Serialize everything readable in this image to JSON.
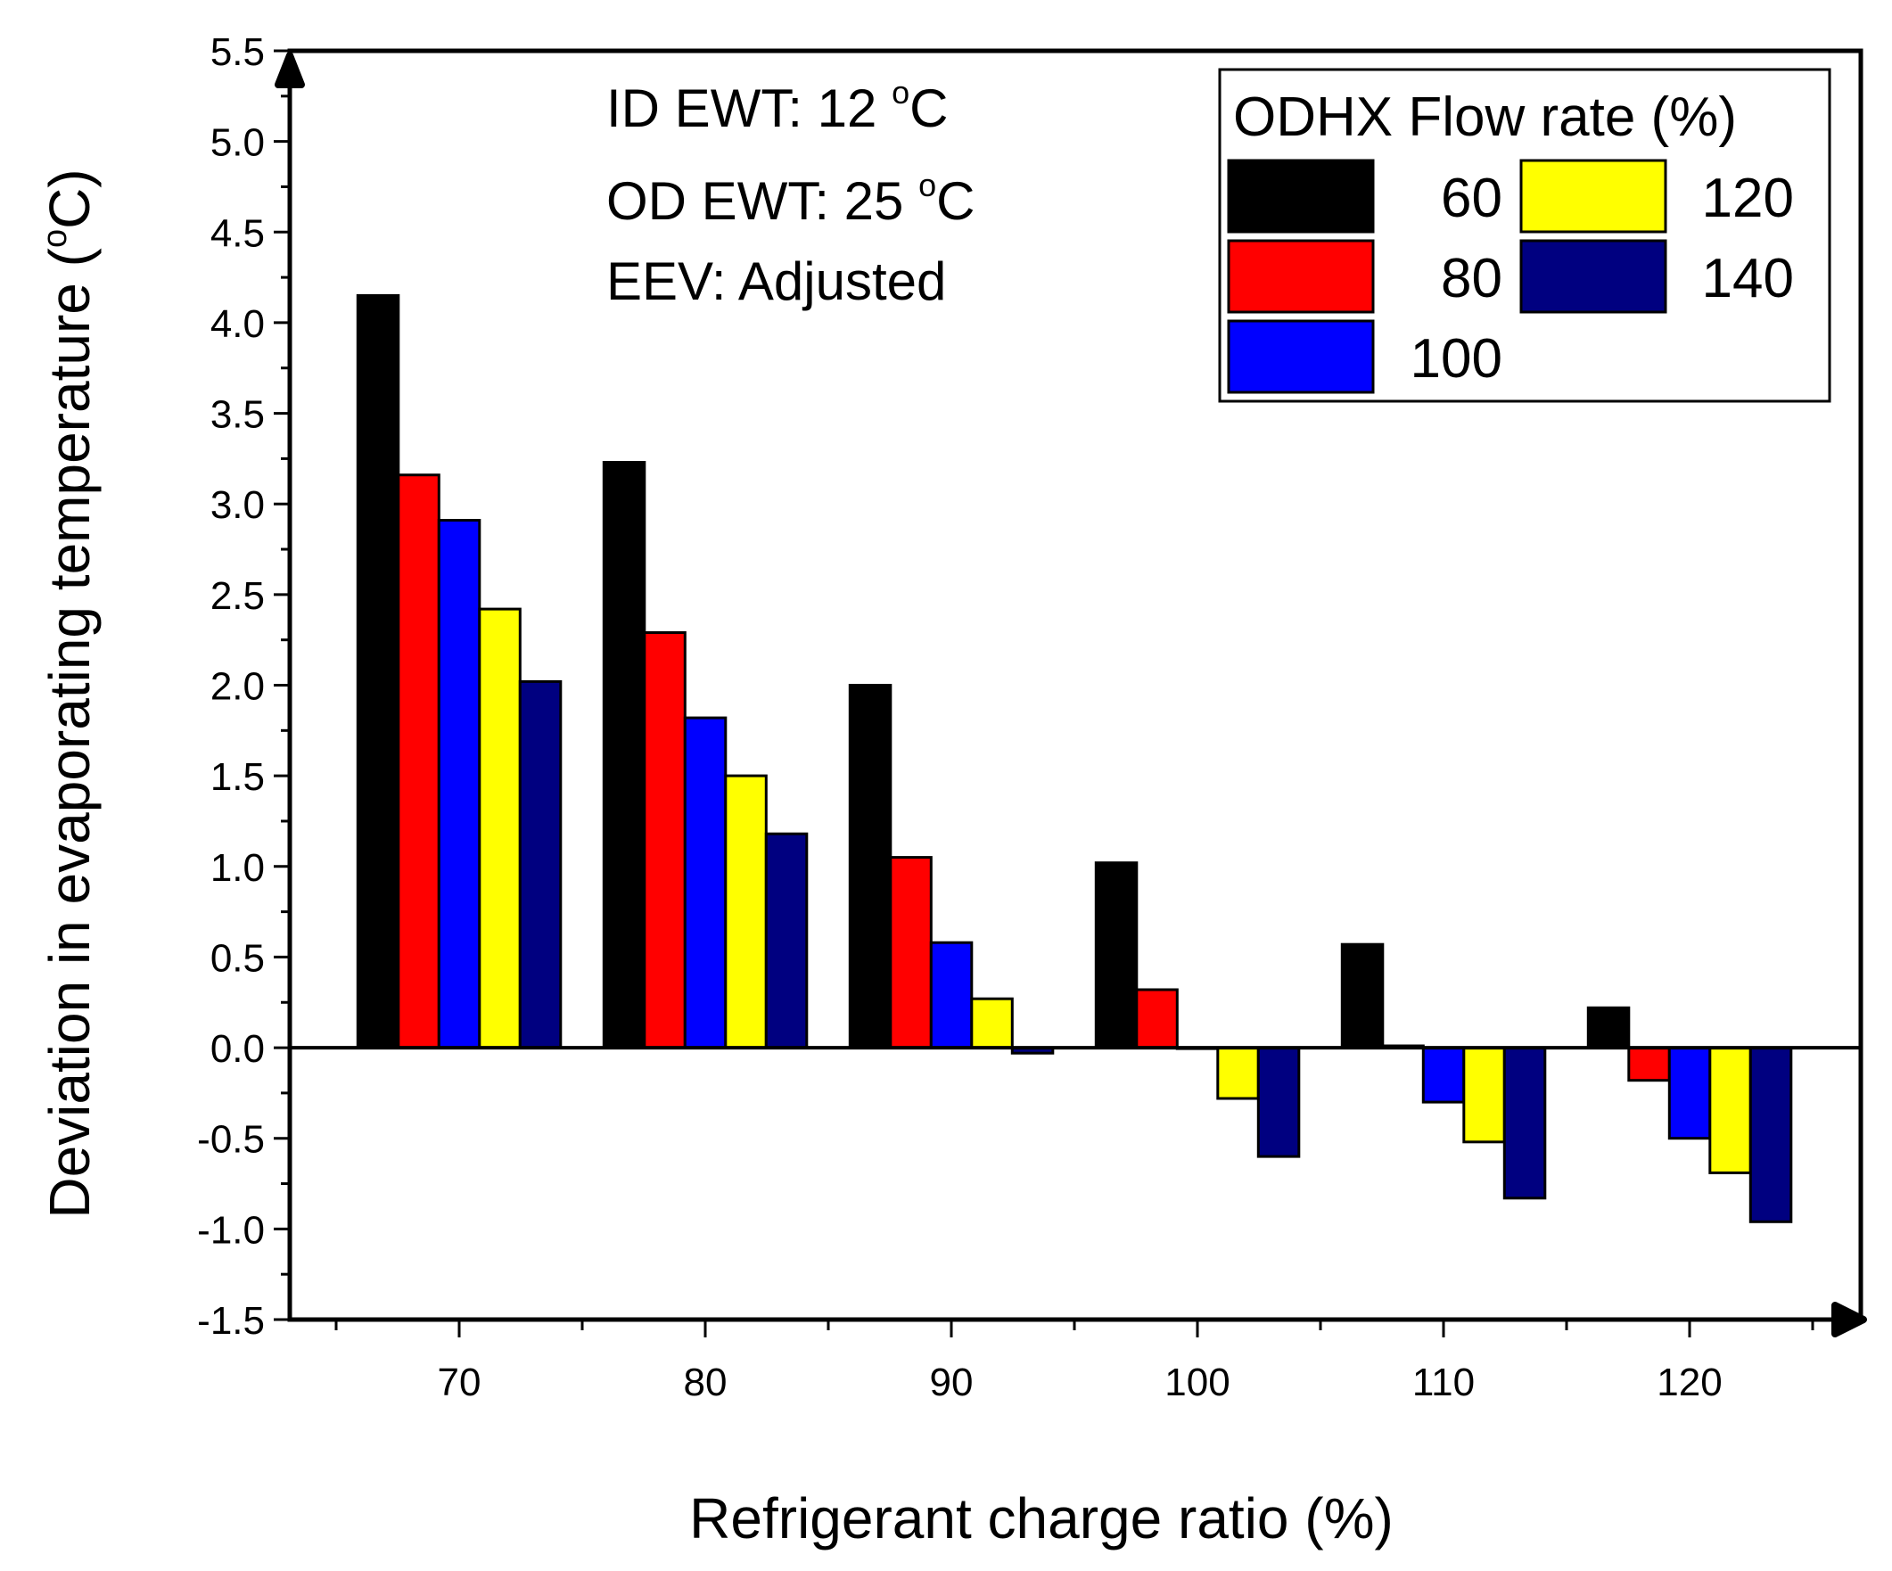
{
  "chart_data": {
    "type": "bar",
    "title": "",
    "xlabel": "Refrigerant charge ratio (%)",
    "ylabel_main": "Deviation in evaporating temperature (",
    "ylabel_sup": "o",
    "ylabel_end": "C)",
    "categories": [
      "70",
      "80",
      "90",
      "100",
      "110",
      "120"
    ],
    "x_ticks": [
      "70",
      "80",
      "90",
      "100",
      "110",
      "120"
    ],
    "ylim": [
      -1.5,
      5.5
    ],
    "y_ticks": [
      "-1.5",
      "-1.0",
      "-0.5",
      "0.0",
      "0.5",
      "1.0",
      "1.5",
      "2.0",
      "2.5",
      "3.0",
      "3.5",
      "4.0",
      "4.5",
      "5.0",
      "5.5"
    ],
    "legend_title": "ODHX Flow rate (%)",
    "legend_position": "top-right",
    "series": [
      {
        "name": "60",
        "color": "#000000",
        "values": [
          4.15,
          3.23,
          2.0,
          1.02,
          0.57,
          0.22
        ]
      },
      {
        "name": "80",
        "color": "#ff0000",
        "values": [
          3.16,
          2.29,
          1.05,
          0.32,
          0.01,
          -0.18
        ]
      },
      {
        "name": "100",
        "color": "#0000ff",
        "values": [
          2.91,
          1.82,
          0.58,
          0.0,
          -0.3,
          -0.5
        ]
      },
      {
        "name": "120",
        "color": "#ffff00",
        "values": [
          2.42,
          1.5,
          0.27,
          -0.28,
          -0.52,
          -0.69
        ]
      },
      {
        "name": "140",
        "color": "#000080",
        "values": [
          2.02,
          1.18,
          -0.03,
          -0.6,
          -0.83,
          -0.96
        ]
      }
    ],
    "annotations": [
      {
        "main": "ID EWT: 12 ",
        "sup": "o",
        "end": "C"
      },
      {
        "main": "OD EWT: 25 ",
        "sup": "o",
        "end": "C"
      },
      {
        "main": "EEV: Adjusted",
        "sup": "",
        "end": ""
      }
    ]
  }
}
